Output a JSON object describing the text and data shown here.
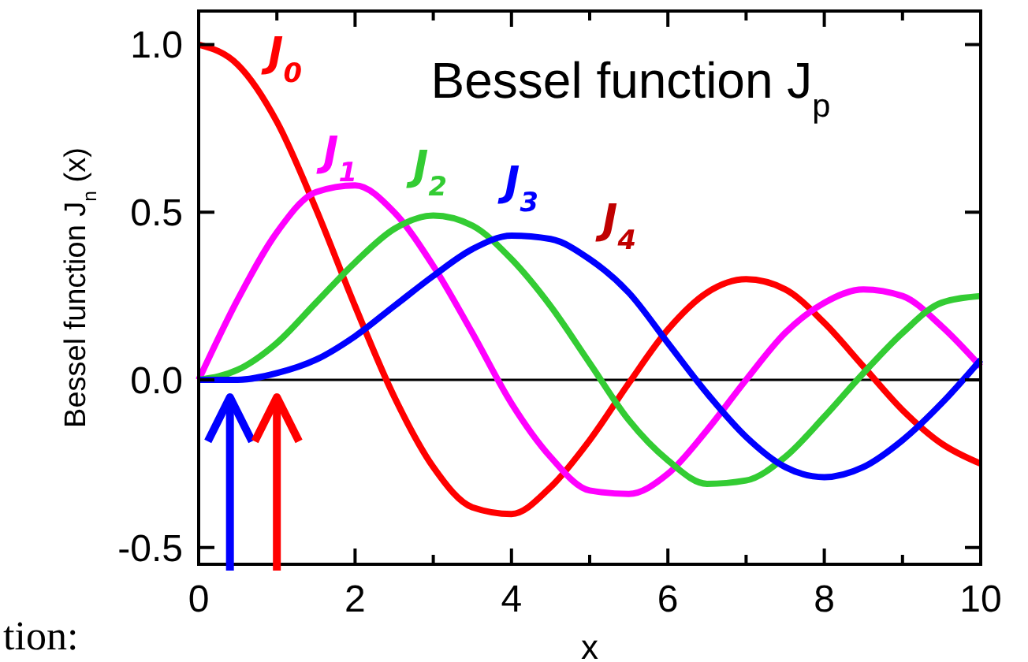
{
  "chart_data": {
    "type": "line",
    "title": "Bessel function J$_{p}$",
    "xlabel": "x",
    "ylabel": "Bessel function J$_{n}$ (x)",
    "x": [
      0,
      0.5,
      1,
      1.5,
      2,
      2.5,
      3,
      3.5,
      4,
      4.5,
      5,
      5.5,
      6,
      6.5,
      7,
      7.5,
      8,
      8.5,
      9,
      9.5,
      10
    ],
    "series": [
      {
        "name": "J$_{0}$",
        "color": "#ff0000",
        "values": [
          1,
          0.94,
          0.77,
          0.51,
          0.22,
          -0.05,
          -0.26,
          -0.38,
          -0.4,
          -0.32,
          -0.18,
          -0.01,
          0.15,
          0.26,
          0.3,
          0.27,
          0.17,
          0.04,
          -0.09,
          -0.19,
          -0.25
        ]
      },
      {
        "name": "J$_{1}$",
        "color": "#ff00ff",
        "values": [
          0,
          0.24,
          0.44,
          0.56,
          0.58,
          0.5,
          0.34,
          0.14,
          -0.07,
          -0.23,
          -0.33,
          -0.34,
          -0.28,
          -0.15,
          0,
          0.14,
          0.23,
          0.27,
          0.25,
          0.16,
          0.04
        ]
      },
      {
        "name": "J$_{2}$",
        "color": "#33cc33",
        "values": [
          0,
          0.03,
          0.11,
          0.23,
          0.35,
          0.45,
          0.49,
          0.46,
          0.36,
          0.22,
          0.05,
          -0.12,
          -0.24,
          -0.31,
          -0.3,
          -0.23,
          -0.11,
          0.02,
          0.14,
          0.23,
          0.25
        ]
      },
      {
        "name": "J$_{3}$",
        "color": "#0000ff",
        "values": [
          0,
          0,
          0.02,
          0.06,
          0.13,
          0.22,
          0.31,
          0.39,
          0.43,
          0.42,
          0.36,
          0.26,
          0.11,
          -0.04,
          -0.17,
          -0.26,
          -0.29,
          -0.26,
          -0.18,
          -0.07,
          0.06
        ]
      }
    ],
    "annotations": [
      "J$_{4}$",
      "tion:"
    ],
    "xlim": [
      0,
      10
    ],
    "ylim": [
      -0.55,
      1.1
    ],
    "xticks": [
      0,
      {
        "value": 1,
        "label": null
      },
      2,
      {
        "value": 3,
        "label": null
      },
      4,
      {
        "value": 5,
        "label": null
      },
      6,
      {
        "value": 7,
        "label": null
      },
      8,
      {
        "value": 9,
        "label": null
      },
      10
    ],
    "yticks": [
      -0.5,
      {
        "value": 0,
        "label": "0.0"
      },
      0.5,
      {
        "value": 1,
        "label": "1.0"
      }
    ],
    "ref_lines": [
      {
        "axis": "y",
        "value": 0,
        "color": "#000000"
      }
    ],
    "marker": "none",
    "line_style": "solid"
  }
}
